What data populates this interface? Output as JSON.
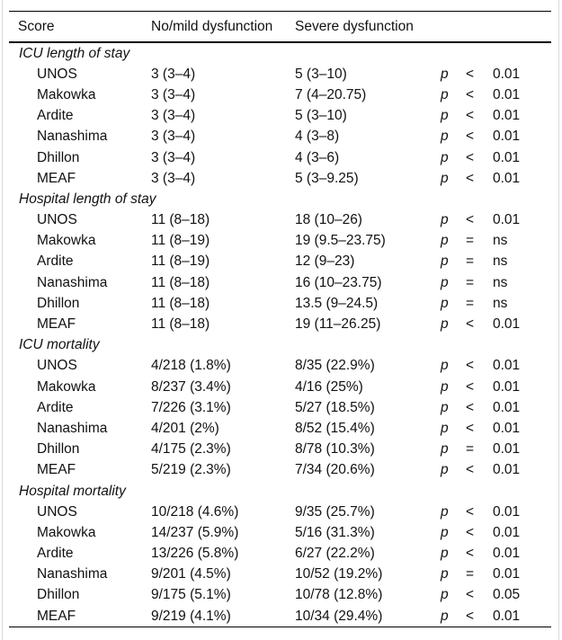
{
  "table": {
    "columns": [
      "Score",
      "No/mild dysfunction",
      "Severe dysfunction"
    ],
    "p_symbol": "p",
    "sections": [
      {
        "title": "ICU length of stay",
        "rows": [
          {
            "score": "UNOS",
            "no_mild": "3 (3–4)",
            "severe": "5 (3–10)",
            "rel": "<",
            "p": "0.01"
          },
          {
            "score": "Makowka",
            "no_mild": "3 (3–4)",
            "severe": "7 (4–20.75)",
            "rel": "<",
            "p": "0.01"
          },
          {
            "score": "Ardite",
            "no_mild": "3 (3–4)",
            "severe": "5 (3–10)",
            "rel": "<",
            "p": "0.01"
          },
          {
            "score": "Nanashima",
            "no_mild": "3 (3–4)",
            "severe": "4 (3–8)",
            "rel": "<",
            "p": "0.01"
          },
          {
            "score": "Dhillon",
            "no_mild": "3 (3–4)",
            "severe": "4 (3–6)",
            "rel": "<",
            "p": "0.01"
          },
          {
            "score": "MEAF",
            "no_mild": "3 (3–4)",
            "severe": "5 (3–9.25)",
            "rel": "<",
            "p": "0.01"
          }
        ]
      },
      {
        "title": "Hospital length of stay",
        "rows": [
          {
            "score": "UNOS",
            "no_mild": "11 (8–18)",
            "severe": "18 (10–26)",
            "rel": "<",
            "p": "0.01"
          },
          {
            "score": "Makowka",
            "no_mild": "11 (8–19)",
            "severe": "19 (9.5–23.75)",
            "rel": "=",
            "p": "ns"
          },
          {
            "score": "Ardite",
            "no_mild": "11 (8–19)",
            "severe": "12 (9–23)",
            "rel": "=",
            "p": "ns"
          },
          {
            "score": "Nanashima",
            "no_mild": "11 (8–18)",
            "severe": "16 (10–23.75)",
            "rel": "=",
            "p": "ns"
          },
          {
            "score": "Dhillon",
            "no_mild": "11 (8–18)",
            "severe": "13.5 (9–24.5)",
            "rel": "=",
            "p": "ns"
          },
          {
            "score": "MEAF",
            "no_mild": "11 (8–18)",
            "severe": "19 (11–26.25)",
            "rel": "<",
            "p": "0.01"
          }
        ]
      },
      {
        "title": "ICU mortality",
        "rows": [
          {
            "score": "UNOS",
            "no_mild": "4/218 (1.8%)",
            "severe": "8/35 (22.9%)",
            "rel": "<",
            "p": "0.01"
          },
          {
            "score": "Makowka",
            "no_mild": "8/237 (3.4%)",
            "severe": "4/16 (25%)",
            "rel": "<",
            "p": "0.01"
          },
          {
            "score": "Ardite",
            "no_mild": "7/226 (3.1%)",
            "severe": "5/27 (18.5%)",
            "rel": "<",
            "p": "0.01"
          },
          {
            "score": "Nanashima",
            "no_mild": "4/201 (2%)",
            "severe": "8/52 (15.4%)",
            "rel": "<",
            "p": "0.01"
          },
          {
            "score": "Dhillon",
            "no_mild": "4/175 (2.3%)",
            "severe": "8/78 (10.3%)",
            "rel": "=",
            "p": "0.01"
          },
          {
            "score": "MEAF",
            "no_mild": "5/219 (2.3%)",
            "severe": "7/34 (20.6%)",
            "rel": "<",
            "p": "0.01"
          }
        ]
      },
      {
        "title": "Hospital mortality",
        "rows": [
          {
            "score": "UNOS",
            "no_mild": "10/218 (4.6%)",
            "severe": "9/35 (25.7%)",
            "rel": "<",
            "p": "0.01"
          },
          {
            "score": "Makowka",
            "no_mild": "14/237 (5.9%)",
            "severe": "5/16 (31.3%)",
            "rel": "<",
            "p": "0.01"
          },
          {
            "score": "Ardite",
            "no_mild": "13/226 (5.8%)",
            "severe": "6/27 (22.2%)",
            "rel": "<",
            "p": "0.01"
          },
          {
            "score": "Nanashima",
            "no_mild": "9/201 (4.5%)",
            "severe": "10/52 (19.2%)",
            "rel": "=",
            "p": "0.01"
          },
          {
            "score": "Dhillon",
            "no_mild": "9/175 (5.1%)",
            "severe": "10/78 (12.8%)",
            "rel": "<",
            "p": "0.05"
          },
          {
            "score": "MEAF",
            "no_mild": "9/219 (4.1%)",
            "severe": "10/34 (29.4%)",
            "rel": "<",
            "p": "0.01"
          }
        ]
      }
    ]
  }
}
